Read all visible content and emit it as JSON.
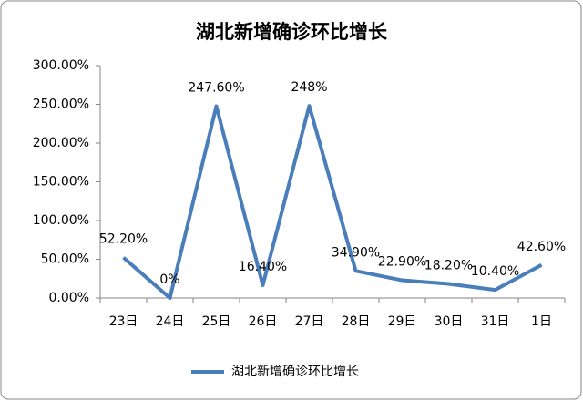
{
  "chart_data": {
    "type": "line",
    "title": "湖北新增确诊环比增长",
    "categories": [
      "23日",
      "24日",
      "25日",
      "26日",
      "27日",
      "28日",
      "29日",
      "30日",
      "31日",
      "1日"
    ],
    "series": [
      {
        "name": "湖北新增确诊环比增长",
        "color": "#4a7ebb",
        "values": [
          52.2,
          0,
          247.6,
          16.4,
          248,
          34.9,
          22.9,
          18.2,
          10.4,
          42.6
        ],
        "value_labels": [
          "52.20%",
          "0%",
          "247.60%",
          "16.40%",
          "248%",
          "34.90%",
          "22.90%",
          "18.20%",
          "10.40%",
          "42.60%"
        ]
      }
    ],
    "ylim": [
      0,
      300
    ],
    "yticks": [
      {
        "value": 0,
        "label": "0.00%"
      },
      {
        "value": 50,
        "label": "50.00%"
      },
      {
        "value": 100,
        "label": "100.00%"
      },
      {
        "value": 150,
        "label": "150.00%"
      },
      {
        "value": 200,
        "label": "200.00%"
      },
      {
        "value": 250,
        "label": "250.00%"
      },
      {
        "value": 300,
        "label": "300.00%"
      }
    ],
    "grid": false,
    "legend": "bottom"
  }
}
